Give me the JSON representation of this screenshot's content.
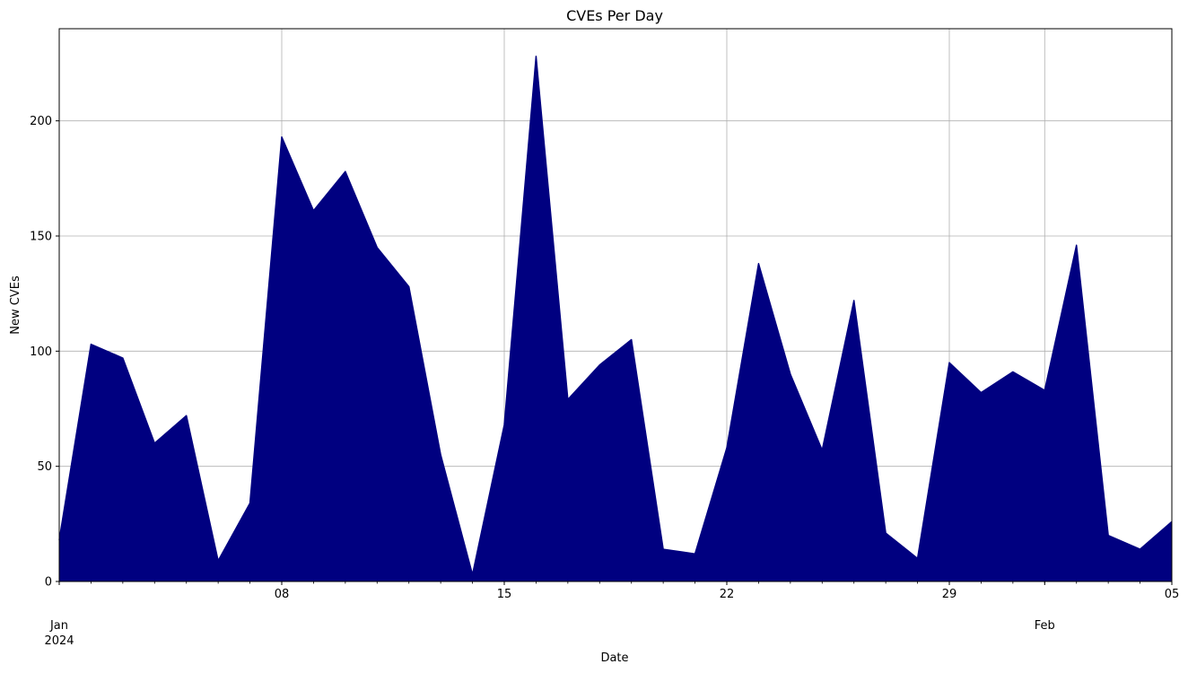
{
  "chart_data": {
    "type": "area",
    "title": "CVEs Per Day",
    "xlabel": "Date",
    "ylabel": "New CVEs",
    "x": [
      "2024-01-01",
      "2024-01-02",
      "2024-01-03",
      "2024-01-04",
      "2024-01-05",
      "2024-01-06",
      "2024-01-07",
      "2024-01-08",
      "2024-01-09",
      "2024-01-10",
      "2024-01-11",
      "2024-01-12",
      "2024-01-13",
      "2024-01-14",
      "2024-01-15",
      "2024-01-16",
      "2024-01-17",
      "2024-01-18",
      "2024-01-19",
      "2024-01-20",
      "2024-01-21",
      "2024-01-22",
      "2024-01-23",
      "2024-01-24",
      "2024-01-25",
      "2024-01-26",
      "2024-01-27",
      "2024-01-28",
      "2024-01-29",
      "2024-01-30",
      "2024-01-31",
      "2024-02-01",
      "2024-02-02",
      "2024-02-03",
      "2024-02-04",
      "2024-02-05"
    ],
    "values": [
      18,
      103,
      97,
      60,
      72,
      9,
      34,
      193,
      161,
      178,
      145,
      128,
      55,
      3,
      68,
      228,
      79,
      94,
      105,
      14,
      12,
      58,
      138,
      90,
      57,
      122,
      21,
      10,
      95,
      82,
      91,
      83,
      146,
      20,
      14,
      26
    ],
    "ylim": [
      0,
      240
    ],
    "yticks": [
      "0",
      "50",
      "100",
      "150",
      "200"
    ],
    "xticks": [
      {
        "date": "2024-01-01",
        "label": "Jan\n2024"
      },
      {
        "date": "2024-01-08",
        "label": "08"
      },
      {
        "date": "2024-01-15",
        "label": "15"
      },
      {
        "date": "2024-01-22",
        "label": "22"
      },
      {
        "date": "2024-01-29",
        "label": "29"
      },
      {
        "date": "2024-02-01",
        "label": "Feb"
      },
      {
        "date": "2024-02-05",
        "label": "05"
      }
    ],
    "grid": true,
    "color": "#000080"
  }
}
